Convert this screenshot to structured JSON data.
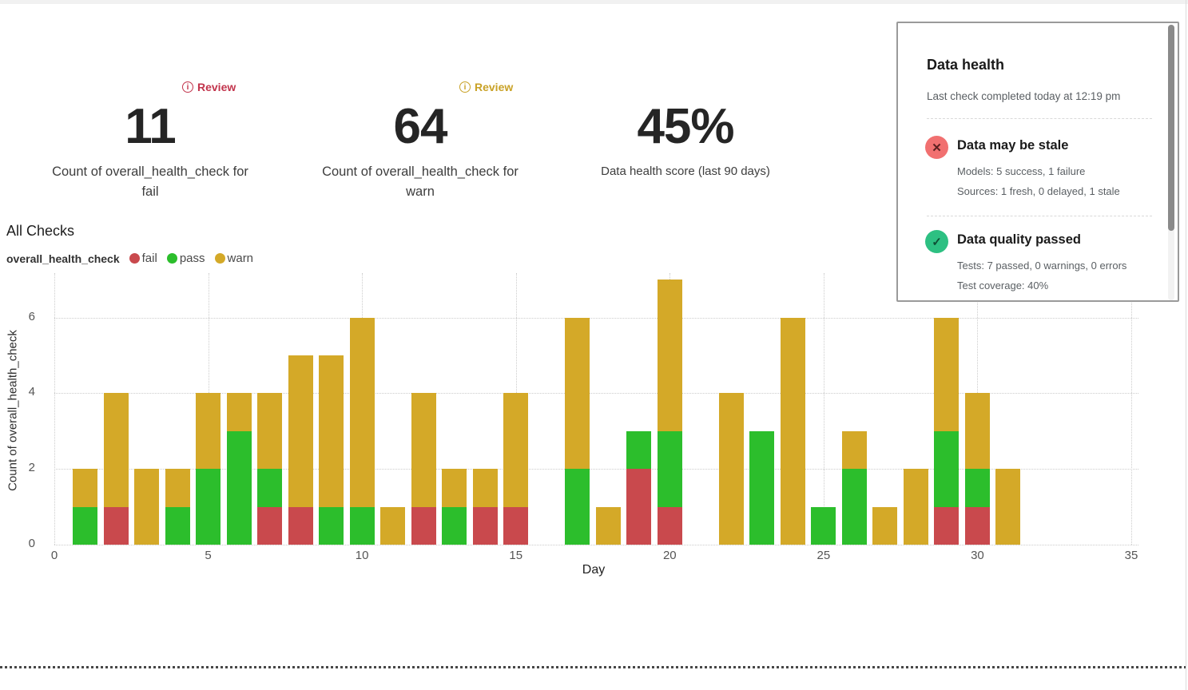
{
  "metrics": {
    "fail": {
      "badge": "Review",
      "badge_color": "#c2344c",
      "value": "11",
      "label": "Count of overall_health_check for fail"
    },
    "warn": {
      "badge": "Review",
      "badge_color": "#c9a227",
      "value": "64",
      "label": "Count of overall_health_check for warn"
    },
    "score": {
      "value": "45%",
      "label": "Data health score (last 90 days)"
    }
  },
  "health_panel": {
    "title": "Data health",
    "subtitle": "Last check completed today at 12:19 pm",
    "items": [
      {
        "icon": "x-circle-icon",
        "glyph": "✕",
        "color": "#f17070",
        "glyph_color": "#5c2020",
        "title": "Data may be stale",
        "lines": [
          "Models: 5 success, 1 failure",
          "Sources: 1 fresh, 0 delayed, 1 stale"
        ]
      },
      {
        "icon": "check-circle-icon",
        "glyph": "✓",
        "color": "#2dc082",
        "glyph_color": "#0e4f35",
        "title": "Data quality passed",
        "lines": [
          "Tests: 7 passed, 0 warnings, 0 errors",
          "Test coverage: 40%"
        ]
      }
    ]
  },
  "chart_data": {
    "type": "bar",
    "stacked": true,
    "title": "All Checks",
    "series_field": "overall_health_check",
    "xlabel": "Day",
    "ylabel": "Count of overall_health_check",
    "x_ticks": [
      0,
      5,
      10,
      15,
      20,
      25,
      30,
      35
    ],
    "y_ticks": [
      0,
      2,
      4,
      6
    ],
    "xlim": [
      0,
      35.5
    ],
    "ylim": [
      0,
      7.1
    ],
    "grid": true,
    "legend_position": "top-left",
    "categories": [
      1,
      2,
      3,
      4,
      5,
      6,
      7,
      8,
      9,
      10,
      11,
      12,
      13,
      14,
      15,
      16,
      17,
      18,
      19,
      20,
      21,
      22,
      23,
      24,
      25,
      26,
      27,
      28,
      29,
      30,
      31
    ],
    "series": [
      {
        "name": "fail",
        "color": "#c9494d",
        "values": [
          0,
          1,
          0,
          0,
          0,
          0,
          1,
          1,
          0,
          0,
          0,
          1,
          0,
          1,
          1,
          0,
          0,
          0,
          2,
          1,
          0,
          0,
          0,
          0,
          0,
          0,
          0,
          0,
          1,
          1,
          0
        ]
      },
      {
        "name": "pass",
        "color": "#2cbe2c",
        "values": [
          1,
          0,
          0,
          1,
          2,
          3,
          1,
          0,
          1,
          1,
          0,
          0,
          1,
          0,
          0,
          0,
          2,
          0,
          1,
          2,
          0,
          0,
          3,
          0,
          1,
          2,
          0,
          0,
          2,
          1,
          0
        ]
      },
      {
        "name": "warn",
        "color": "#d4a928",
        "values": [
          1,
          3,
          2,
          1,
          2,
          1,
          2,
          4,
          4,
          5,
          1,
          3,
          1,
          1,
          3,
          0,
          4,
          1,
          0,
          4,
          0,
          4,
          0,
          6,
          0,
          1,
          1,
          2,
          3,
          2,
          2
        ]
      }
    ]
  }
}
